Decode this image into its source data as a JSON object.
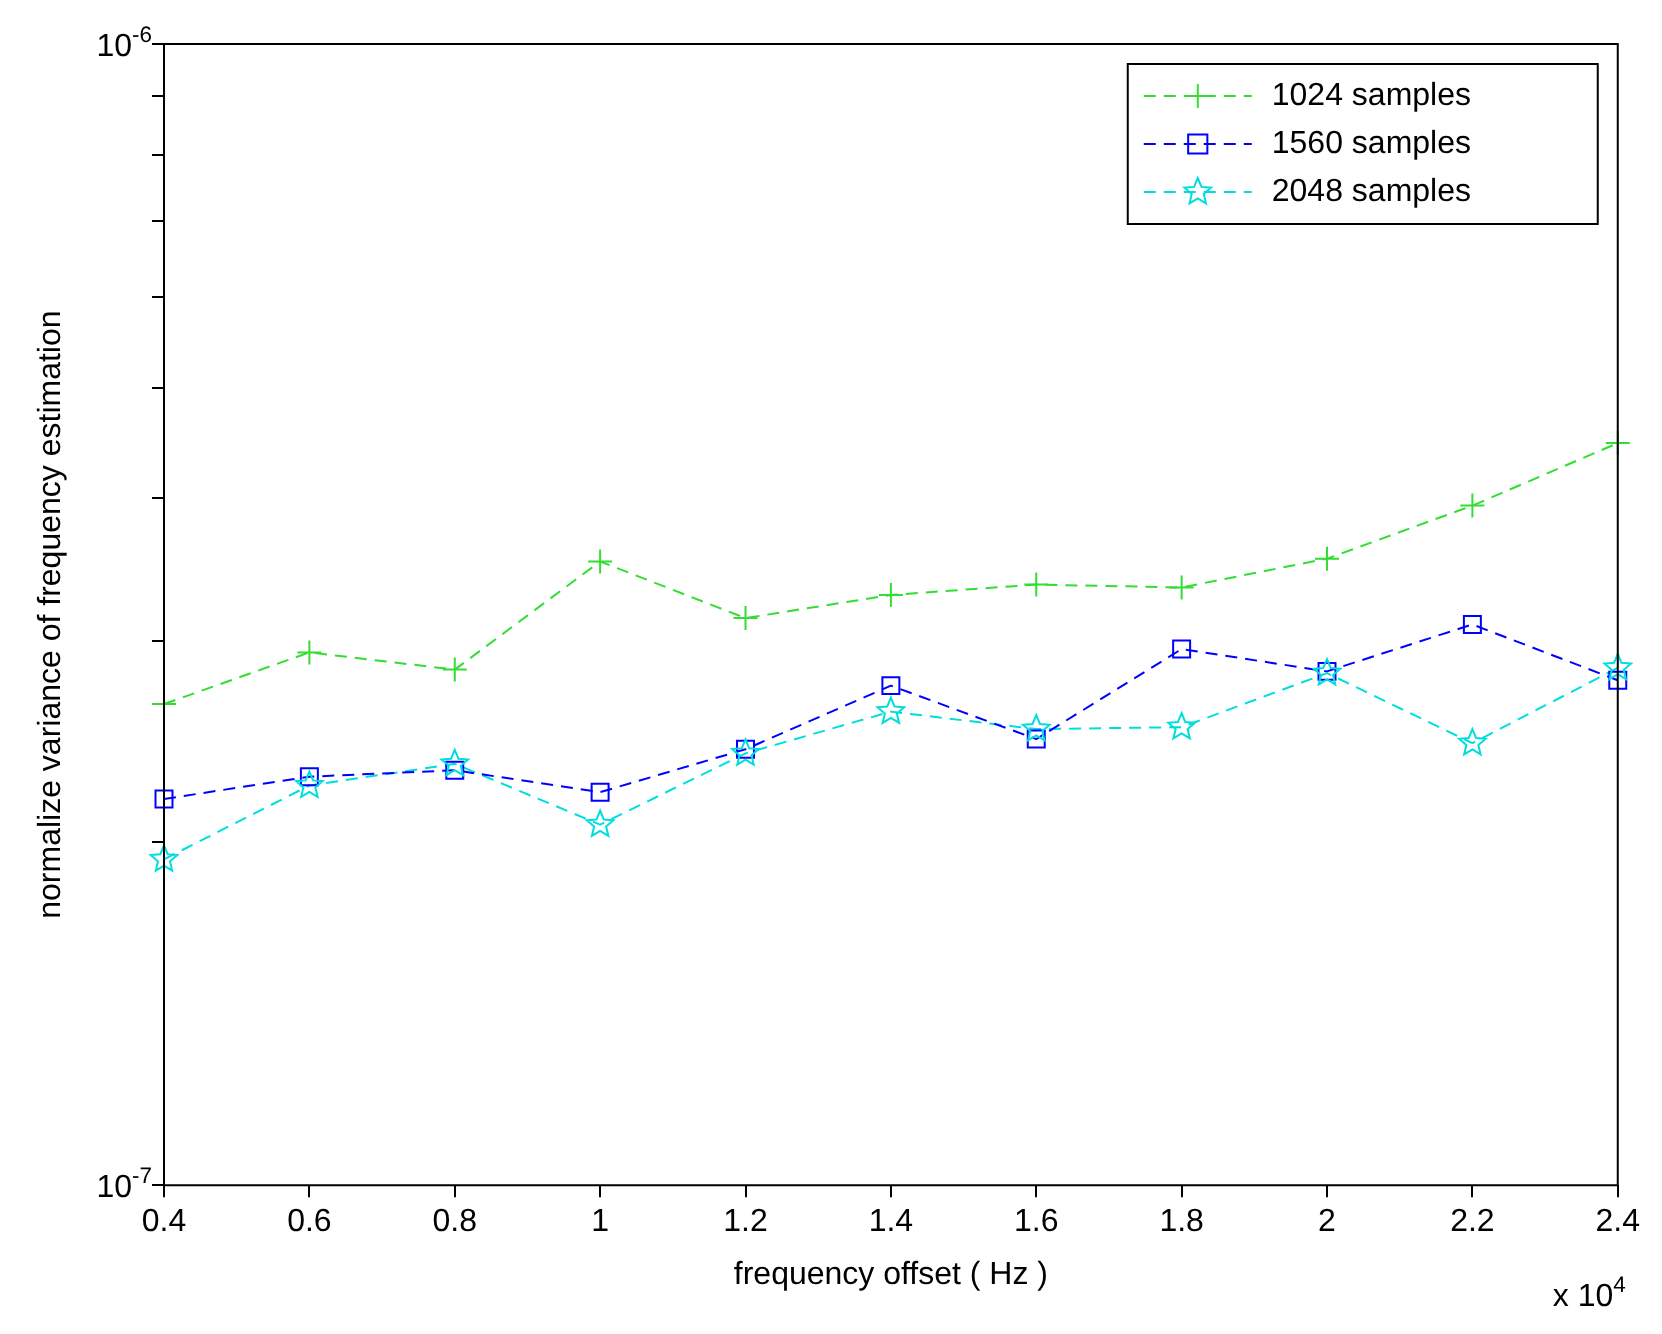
{
  "chart_data": {
    "type": "line",
    "xlabel": "frequency offset ( Hz )",
    "ylabel": "normalize variance of frequency estimation",
    "annotations": [
      "x 10$^{4}$"
    ],
    "x": [
      0.4,
      0.6,
      0.8,
      1,
      1.2,
      1.4,
      1.6,
      1.8,
      2,
      2.2,
      2.4
    ],
    "series": [
      {
        "name": "1024 samples",
        "color": "#33dd33",
        "marker": "cross",
        "values": [
          2.64e-07,
          2.93e-07,
          2.83e-07,
          3.52e-07,
          3.14e-07,
          3.29e-07,
          3.36e-07,
          3.34e-07,
          3.54e-07,
          3.94e-07,
          4.47e-07
        ]
      },
      {
        "name": "1560 samples",
        "color": "#0000ff",
        "marker": "square",
        "values": [
          2.18e-07,
          2.28e-07,
          2.31e-07,
          2.21e-07,
          2.41e-07,
          2.74e-07,
          2.46e-07,
          2.95e-07,
          2.82e-07,
          3.1e-07,
          2.77e-07
        ]
      },
      {
        "name": "2048 samples",
        "color": "#00dddd",
        "marker": "star",
        "values": [
          1.93e-07,
          2.24e-07,
          2.34e-07,
          2.07e-07,
          2.39e-07,
          2.6e-07,
          2.51e-07,
          2.52e-07,
          2.81e-07,
          2.44e-07,
          2.84e-07
        ]
      }
    ],
    "xlim": [
      0.4,
      2.4
    ],
    "xticks": [
      0.4,
      0.6,
      0.8,
      1,
      1.2,
      1.4,
      1.6,
      1.8,
      2,
      2.2,
      2.4
    ],
    "ylim": [
      1e-07,
      1e-06
    ],
    "yticks": [
      {
        "value": 1e-07,
        "label": "10$^{-7}$"
      },
      {
        "value": 2e-07,
        "label": null
      },
      {
        "value": 3e-07,
        "label": null
      },
      {
        "value": 4e-07,
        "label": null
      },
      {
        "value": 5e-07,
        "label": null
      },
      {
        "value": 6e-07,
        "label": null
      },
      {
        "value": 7e-07,
        "label": null
      },
      {
        "value": 8e-07,
        "label": null
      },
      {
        "value": 9e-07,
        "label": null
      },
      {
        "value": 1e-06,
        "label": "10$^{-6}$"
      }
    ],
    "log": "y",
    "grid": false,
    "legend": "top right",
    "line_style": "dashed"
  }
}
